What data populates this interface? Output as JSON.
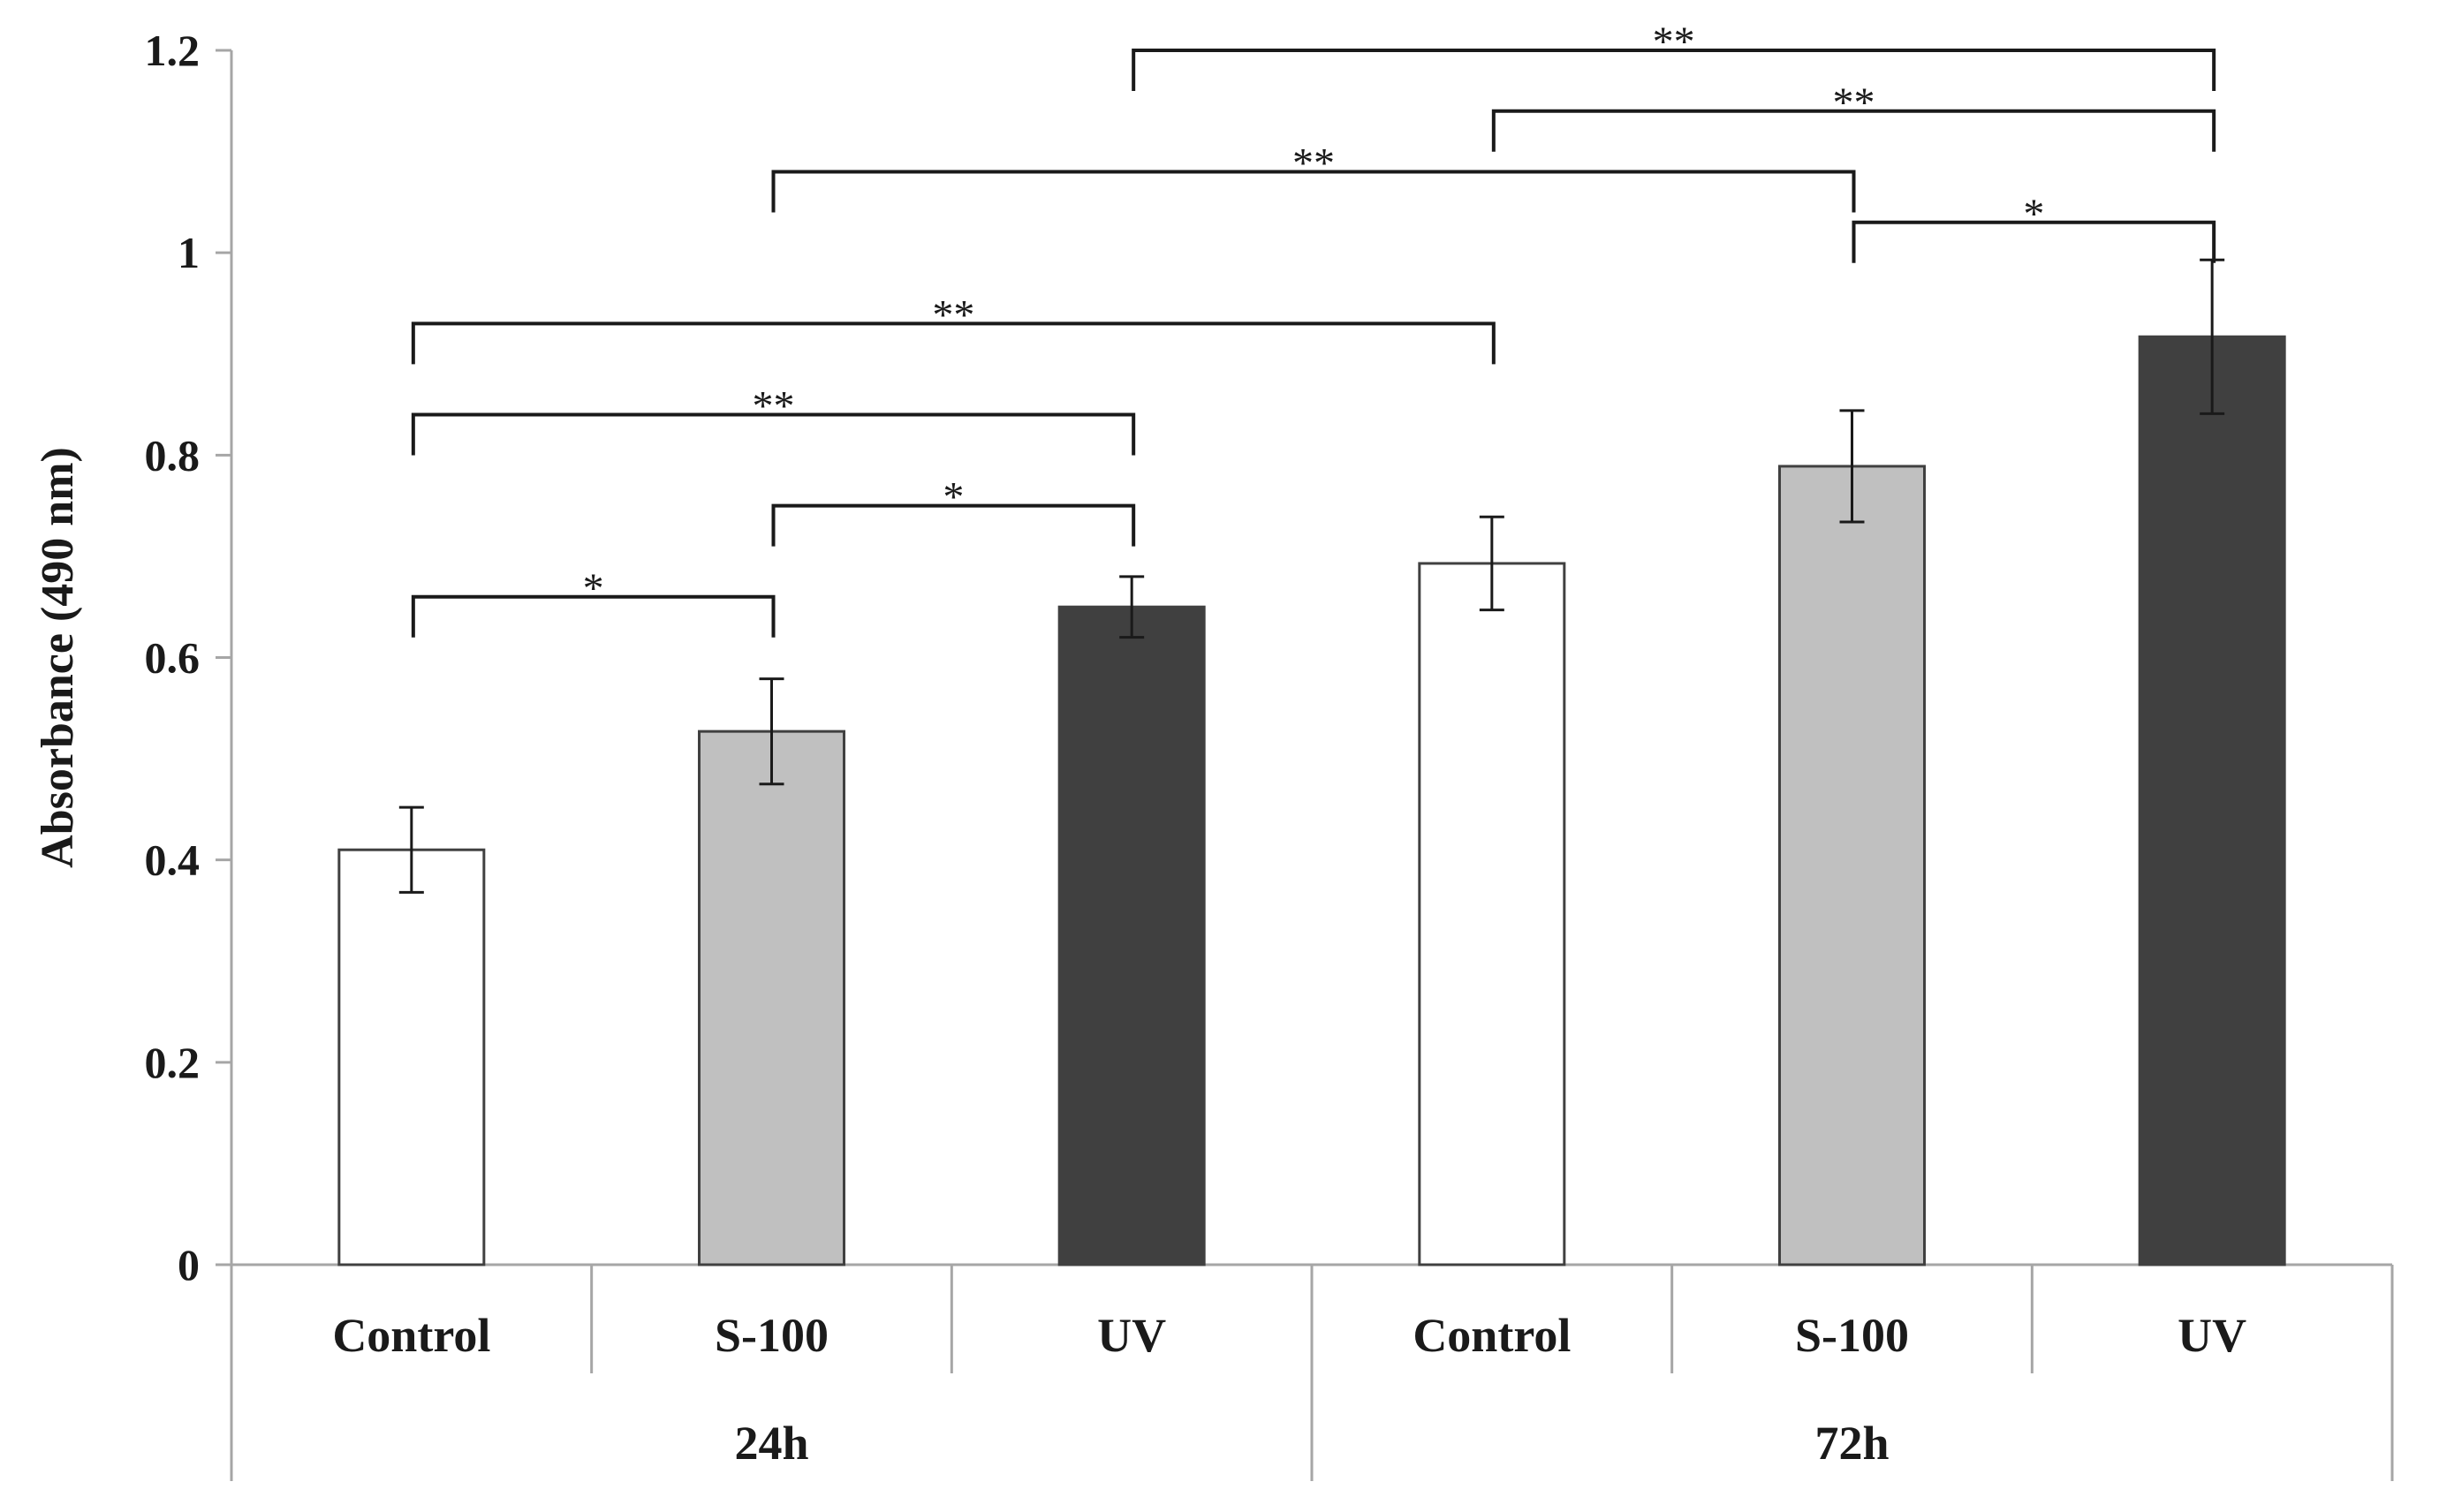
{
  "chart_data": {
    "type": "bar",
    "ylabel": "Absorbance (490 nm)",
    "ylim": [
      0,
      1.2
    ],
    "yticks": [
      0,
      0.2,
      0.4,
      0.6,
      0.8,
      1,
      1.2
    ],
    "ytick_labels": [
      "0",
      "0.2",
      "0.4",
      "0.6",
      "0.8",
      "1",
      "1.2"
    ],
    "grid": false,
    "legend": "none",
    "groups": [
      {
        "label": "24h",
        "bars": [
          0,
          1,
          2
        ]
      },
      {
        "label": "72h",
        "bars": [
          3,
          4,
          5
        ]
      }
    ],
    "bars": [
      {
        "label": "Control",
        "value": 0.41,
        "error": 0.042,
        "fill": "#ffffff"
      },
      {
        "label": "S-100",
        "value": 0.527,
        "error": 0.052,
        "fill": "#c0c0c0"
      },
      {
        "label": "UV",
        "value": 0.65,
        "error": 0.03,
        "fill": "#404040"
      },
      {
        "label": "Control",
        "value": 0.693,
        "error": 0.046,
        "fill": "#ffffff"
      },
      {
        "label": "S-100",
        "value": 0.789,
        "error": 0.055,
        "fill": "#c0c0c0"
      },
      {
        "label": "UV",
        "value": 0.917,
        "error": 0.076,
        "fill": "#404040"
      }
    ],
    "significance": [
      {
        "from": 0,
        "to": 1,
        "y": 0.66,
        "label": "*"
      },
      {
        "from": 1,
        "to": 2,
        "y": 0.75,
        "label": "*"
      },
      {
        "from": 0,
        "to": 2,
        "y": 0.84,
        "label": "**"
      },
      {
        "from": 0,
        "to": 3,
        "y": 0.93,
        "label": "**"
      },
      {
        "from": 4,
        "to": 5,
        "y": 1.03,
        "label": "*"
      },
      {
        "from": 1,
        "to": 4,
        "y": 1.08,
        "label": "**"
      },
      {
        "from": 3,
        "to": 5,
        "y": 1.14,
        "label": "**"
      },
      {
        "from": 2,
        "to": 5,
        "y": 1.2,
        "label": "**"
      }
    ]
  }
}
